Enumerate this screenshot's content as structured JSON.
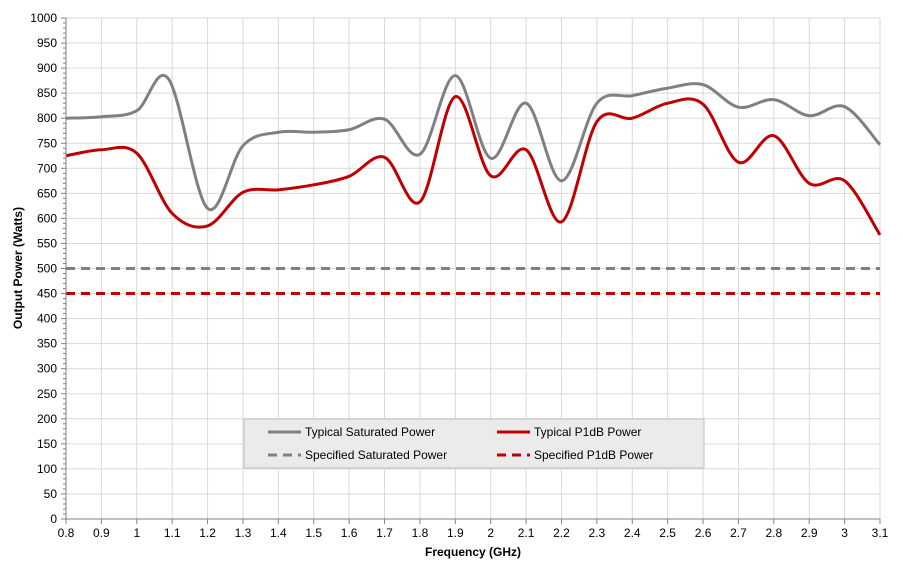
{
  "chart_data": {
    "type": "line",
    "xlabel": "Frequency (GHz)",
    "ylabel": "Output Power (Watts)",
    "xlim": [
      0.8,
      3.1
    ],
    "ylim": [
      0,
      1000
    ],
    "x_ticks": [
      "0.8",
      "0.9",
      "1",
      "1.1",
      "1.2",
      "1.3",
      "1.4",
      "1.5",
      "1.6",
      "1.7",
      "1.8",
      "1.9",
      "2",
      "2.1",
      "2.2",
      "2.3",
      "2.4",
      "2.5",
      "2.6",
      "2.7",
      "2.8",
      "2.9",
      "3",
      "3.1"
    ],
    "y_ticks": [
      "0",
      "50",
      "100",
      "150",
      "200",
      "250",
      "300",
      "350",
      "400",
      "450",
      "500",
      "550",
      "600",
      "650",
      "700",
      "750",
      "800",
      "850",
      "900",
      "950",
      "1000"
    ],
    "grid": true,
    "legend_position": "lower-center",
    "series": [
      {
        "name": "Typical Saturated Power",
        "color": "#808080",
        "style": "solid",
        "x": [
          0.8,
          0.9,
          1.0,
          1.09,
          1.2,
          1.3,
          1.4,
          1.5,
          1.6,
          1.7,
          1.8,
          1.9,
          2.0,
          2.1,
          2.2,
          2.3,
          2.4,
          2.5,
          2.6,
          2.7,
          2.8,
          2.9,
          3.0,
          3.1
        ],
        "values": [
          800,
          803,
          815,
          878,
          620,
          745,
          772,
          772,
          777,
          798,
          728,
          885,
          720,
          830,
          675,
          830,
          845,
          860,
          867,
          822,
          837,
          805,
          823,
          747
        ]
      },
      {
        "name": "Typical P1dB Power",
        "color": "#c00000",
        "style": "solid",
        "x": [
          0.8,
          0.9,
          1.0,
          1.1,
          1.2,
          1.3,
          1.4,
          1.5,
          1.6,
          1.7,
          1.8,
          1.9,
          2.0,
          2.1,
          2.2,
          2.3,
          2.4,
          2.5,
          2.6,
          2.7,
          2.8,
          2.9,
          3.0,
          3.1
        ],
        "values": [
          725,
          737,
          730,
          610,
          585,
          652,
          657,
          667,
          684,
          722,
          633,
          843,
          685,
          737,
          593,
          793,
          800,
          830,
          828,
          712,
          765,
          670,
          675,
          567
        ]
      },
      {
        "name": "Specified Saturated Power",
        "color": "#808080",
        "style": "dashed",
        "x": [
          0.8,
          3.1
        ],
        "values": [
          500,
          500
        ]
      },
      {
        "name": "Specified P1dB Power",
        "color": "#c00000",
        "style": "dashed",
        "x": [
          0.8,
          3.1
        ],
        "values": [
          450,
          450
        ]
      }
    ]
  }
}
